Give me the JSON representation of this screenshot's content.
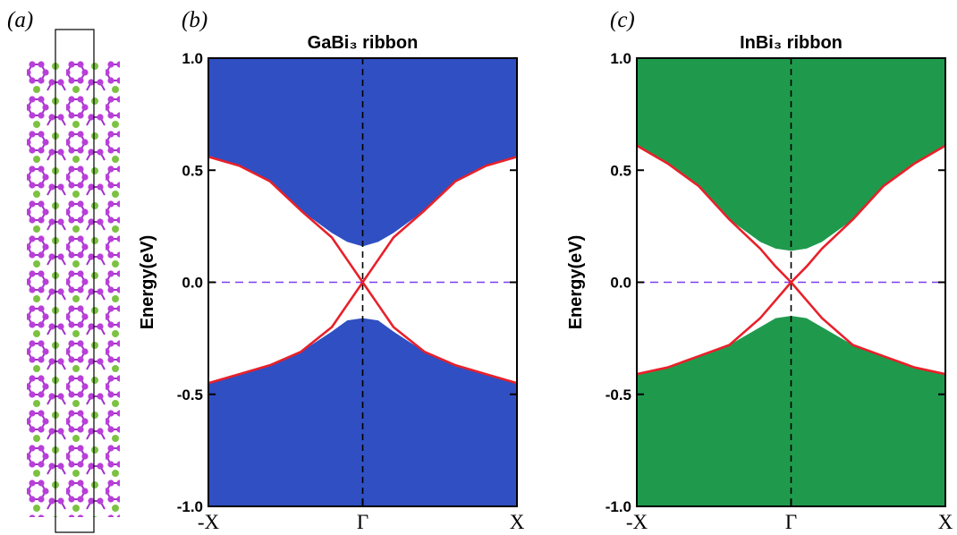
{
  "panel_a": {
    "label": "(a)"
  },
  "chart_data": [
    {
      "type": "line",
      "panel_label": "(b)",
      "title": "GaBi₃ ribbon",
      "ylabel": "Energy(eV)",
      "x": [
        -1,
        -0.8,
        -0.6,
        -0.4,
        -0.2,
        -0.1,
        0,
        0.1,
        0.2,
        0.4,
        0.6,
        0.8,
        1
      ],
      "xlim": [
        -1,
        1
      ],
      "xticks": [
        {
          "value": -1,
          "label": "-X"
        },
        {
          "value": 0,
          "label": "Γ"
        },
        {
          "value": 1,
          "label": "X"
        }
      ],
      "ylim": [
        -1,
        1
      ],
      "yticks": [
        {
          "value": -1,
          "label": "-1.0"
        },
        {
          "value": -0.5,
          "label": "-0.5"
        },
        {
          "value": 0,
          "label": "0.0"
        },
        {
          "value": 0.5,
          "label": "0.5"
        },
        {
          "value": 1,
          "label": "1.0"
        }
      ],
      "hlines": [
        {
          "value": 0,
          "color": "#7b3cf0"
        }
      ],
      "vlines": [
        {
          "value": 0,
          "color": "#000000"
        }
      ],
      "series": [
        {
          "fill": "above",
          "color": "#2f4fc3",
          "values": [
            0.56,
            0.52,
            0.45,
            0.32,
            0.22,
            0.18,
            0.16,
            0.18,
            0.22,
            0.32,
            0.45,
            0.52,
            0.56
          ]
        },
        {
          "fill": "below",
          "color": "#2f4fc3",
          "values": [
            -0.45,
            -0.41,
            -0.37,
            -0.31,
            -0.22,
            -0.17,
            -0.16,
            -0.17,
            -0.22,
            -0.31,
            -0.37,
            -0.41,
            -0.45
          ]
        },
        {
          "fill": "none",
          "color": "#e8202a",
          "values": [
            0.56,
            0.52,
            0.45,
            0.32,
            0.2,
            0.1,
            0,
            0.1,
            0.2,
            0.32,
            0.45,
            0.52,
            0.56
          ]
        },
        {
          "fill": "none",
          "color": "#e8202a",
          "values": [
            -0.45,
            -0.41,
            -0.37,
            -0.31,
            -0.2,
            -0.1,
            0,
            -0.1,
            -0.2,
            -0.31,
            -0.37,
            -0.41,
            -0.45
          ]
        }
      ]
    },
    {
      "type": "line",
      "panel_label": "(c)",
      "title": "InBi₃ ribbon",
      "ylabel": "Energy(eV)",
      "x": [
        -1,
        -0.8,
        -0.6,
        -0.4,
        -0.2,
        -0.1,
        0,
        0.1,
        0.2,
        0.4,
        0.6,
        0.8,
        1
      ],
      "xlim": [
        -1,
        1
      ],
      "xticks": [
        {
          "value": -1,
          "label": "-X"
        },
        {
          "value": 0,
          "label": "Γ"
        },
        {
          "value": 1,
          "label": "X"
        }
      ],
      "ylim": [
        -1,
        1
      ],
      "yticks": [
        {
          "value": -1,
          "label": "-1.0"
        },
        {
          "value": -0.5,
          "label": "-0.5"
        },
        {
          "value": 0,
          "label": "0.0"
        },
        {
          "value": 0.5,
          "label": "0.5"
        },
        {
          "value": 1,
          "label": "1.0"
        }
      ],
      "hlines": [
        {
          "value": 0,
          "color": "#7b3cf0"
        }
      ],
      "vlines": [
        {
          "value": 0,
          "color": "#000000"
        }
      ],
      "series": [
        {
          "fill": "above",
          "color": "#1f9a4d",
          "values": [
            0.61,
            0.53,
            0.43,
            0.28,
            0.18,
            0.15,
            0.14,
            0.15,
            0.18,
            0.28,
            0.43,
            0.53,
            0.61
          ]
        },
        {
          "fill": "below",
          "color": "#1f9a4d",
          "values": [
            -0.41,
            -0.38,
            -0.33,
            -0.28,
            -0.2,
            -0.16,
            -0.15,
            -0.16,
            -0.2,
            -0.28,
            -0.33,
            -0.38,
            -0.41
          ]
        },
        {
          "fill": "none",
          "color": "#e8202a",
          "values": [
            0.61,
            0.53,
            0.43,
            0.28,
            0.15,
            0.07,
            0,
            0.07,
            0.15,
            0.28,
            0.43,
            0.53,
            0.61
          ]
        },
        {
          "fill": "none",
          "color": "#e8202a",
          "values": [
            -0.41,
            -0.38,
            -0.33,
            -0.28,
            -0.16,
            -0.08,
            0,
            -0.08,
            -0.16,
            -0.28,
            -0.33,
            -0.38,
            -0.41
          ]
        }
      ]
    }
  ]
}
